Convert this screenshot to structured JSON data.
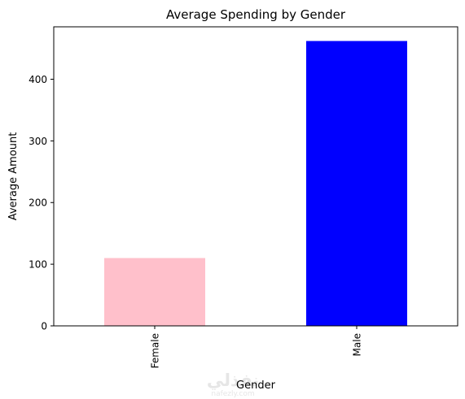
{
  "chart_data": {
    "type": "bar",
    "title": "Average Spending by Gender",
    "xlabel": "Gender",
    "ylabel": "Average Amount",
    "categories": [
      "Female",
      "Male"
    ],
    "values": [
      110,
      462
    ],
    "ylim": [
      0,
      485
    ],
    "yticks": [
      0,
      100,
      200,
      300,
      400
    ],
    "colors": [
      "#ffc0cb",
      "#0000ff"
    ],
    "grid": false,
    "legend": "none"
  },
  "watermark": {
    "arabic": "نفذلي",
    "latin": "nafezly.com"
  }
}
